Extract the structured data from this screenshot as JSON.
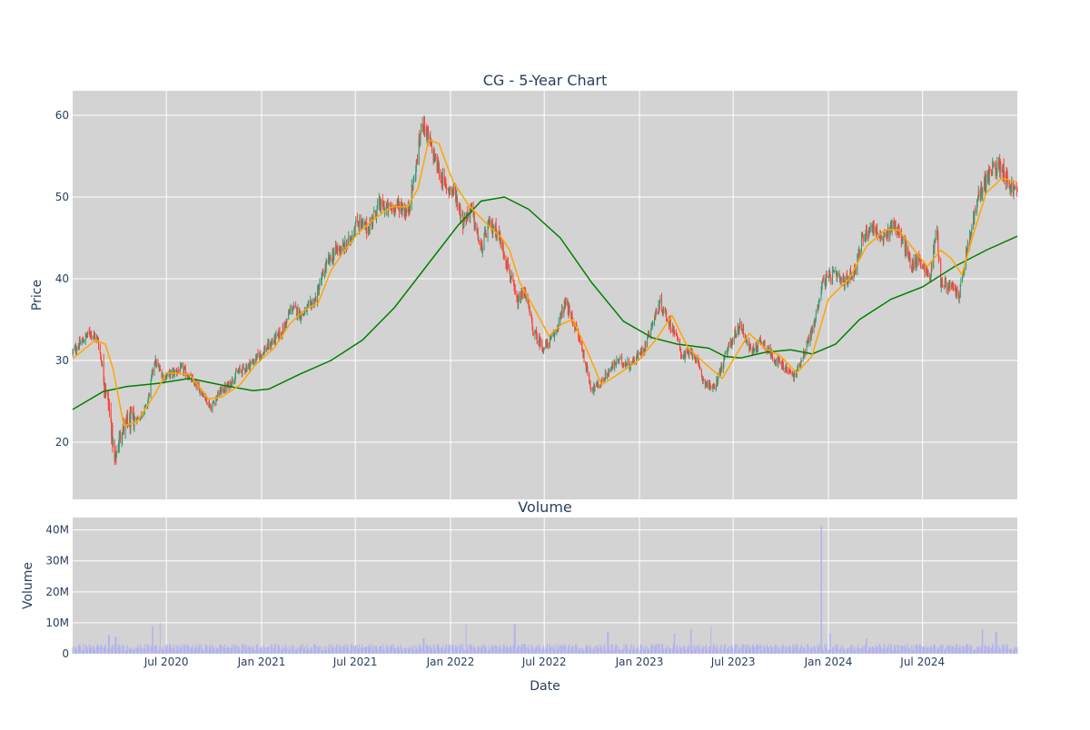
{
  "chart_data": [
    {
      "type": "candlestick",
      "title": "CG - 5-Year Chart",
      "xlabel": "",
      "ylabel": "Price",
      "ylim": [
        13,
        63
      ],
      "yticks": [
        20,
        30,
        40,
        50,
        60
      ],
      "xlim": [
        "2020-01-02",
        "2024-12-31"
      ],
      "xticks": [
        {
          "date": "2020-07-01",
          "label": "Jul 2020"
        },
        {
          "date": "2021-01-01",
          "label": "Jan 2021"
        },
        {
          "date": "2021-07-01",
          "label": "Jul 2021"
        },
        {
          "date": "2022-01-01",
          "label": "Jan 2022"
        },
        {
          "date": "2022-07-01",
          "label": "Jul 2022"
        },
        {
          "date": "2023-01-01",
          "label": "Jan 2023"
        },
        {
          "date": "2023-07-01",
          "label": "Jul 2023"
        },
        {
          "date": "2024-01-01",
          "label": "Jan 2024"
        },
        {
          "date": "2024-07-01",
          "label": "Jul 2024"
        }
      ],
      "grid": true,
      "background": "#d3d3d3",
      "colors": {
        "up": "#3d9970",
        "down": "#ff4136",
        "ma_short": "#ffa500",
        "ma_long": "#008000"
      },
      "price_path": [
        [
          "2020-01-02",
          31.0
        ],
        [
          "2020-01-20",
          32.3
        ],
        [
          "2020-02-05",
          33.5
        ],
        [
          "2020-02-20",
          32.5
        ],
        [
          "2020-03-05",
          27.0
        ],
        [
          "2020-03-15",
          23.0
        ],
        [
          "2020-03-23",
          17.5
        ],
        [
          "2020-04-05",
          21.5
        ],
        [
          "2020-04-20",
          22.5
        ],
        [
          "2020-05-10",
          23.0
        ],
        [
          "2020-05-25",
          24.5
        ],
        [
          "2020-06-08",
          30.0
        ],
        [
          "2020-06-25",
          28.0
        ],
        [
          "2020-07-15",
          28.5
        ],
        [
          "2020-08-01",
          29.0
        ],
        [
          "2020-08-20",
          27.5
        ],
        [
          "2020-09-10",
          26.0
        ],
        [
          "2020-09-25",
          24.2
        ],
        [
          "2020-10-10",
          26.0
        ],
        [
          "2020-10-30",
          27.0
        ],
        [
          "2020-11-15",
          28.5
        ],
        [
          "2020-12-10",
          29.5
        ],
        [
          "2021-01-10",
          31.5
        ],
        [
          "2021-02-10",
          33.5
        ],
        [
          "2021-02-28",
          36.5
        ],
        [
          "2021-03-20",
          35.5
        ],
        [
          "2021-04-15",
          37.5
        ],
        [
          "2021-05-05",
          41.5
        ],
        [
          "2021-05-25",
          43.5
        ],
        [
          "2021-06-15",
          44.0
        ],
        [
          "2021-07-05",
          47.0
        ],
        [
          "2021-07-25",
          46.0
        ],
        [
          "2021-08-15",
          49.0
        ],
        [
          "2021-09-05",
          48.5
        ],
        [
          "2021-09-25",
          49.0
        ],
        [
          "2021-10-10",
          48.0
        ],
        [
          "2021-10-25",
          53.0
        ],
        [
          "2021-11-08",
          59.5
        ],
        [
          "2021-11-20",
          57.0
        ],
        [
          "2021-12-05",
          54.0
        ],
        [
          "2021-12-20",
          51.5
        ],
        [
          "2022-01-10",
          50.5
        ],
        [
          "2022-01-25",
          47.0
        ],
        [
          "2022-02-10",
          48.5
        ],
        [
          "2022-03-01",
          43.5
        ],
        [
          "2022-03-15",
          46.5
        ],
        [
          "2022-04-01",
          46.0
        ],
        [
          "2022-04-20",
          42.0
        ],
        [
          "2022-05-10",
          37.0
        ],
        [
          "2022-05-25",
          38.5
        ],
        [
          "2022-06-10",
          33.5
        ],
        [
          "2022-06-30",
          31.5
        ],
        [
          "2022-07-20",
          33.0
        ],
        [
          "2022-08-10",
          37.0
        ],
        [
          "2022-08-25",
          35.0
        ],
        [
          "2022-09-10",
          32.0
        ],
        [
          "2022-09-30",
          26.5
        ],
        [
          "2022-10-15",
          27.0
        ],
        [
          "2022-11-01",
          28.5
        ],
        [
          "2022-11-20",
          30.0
        ],
        [
          "2022-12-15",
          29.5
        ],
        [
          "2023-01-10",
          31.5
        ],
        [
          "2023-01-25",
          34.5
        ],
        [
          "2023-02-10",
          37.0
        ],
        [
          "2023-02-25",
          35.0
        ],
        [
          "2023-03-10",
          33.5
        ],
        [
          "2023-03-25",
          30.5
        ],
        [
          "2023-04-15",
          31.0
        ],
        [
          "2023-05-05",
          27.5
        ],
        [
          "2023-05-25",
          26.5
        ],
        [
          "2023-06-10",
          29.5
        ],
        [
          "2023-06-25",
          32.0
        ],
        [
          "2023-07-15",
          34.5
        ],
        [
          "2023-08-05",
          31.0
        ],
        [
          "2023-08-25",
          32.5
        ],
        [
          "2023-09-15",
          30.5
        ],
        [
          "2023-10-10",
          29.0
        ],
        [
          "2023-10-28",
          28.0
        ],
        [
          "2023-11-15",
          31.0
        ],
        [
          "2023-12-05",
          34.5
        ],
        [
          "2023-12-20",
          39.5
        ],
        [
          "2024-01-10",
          40.5
        ],
        [
          "2024-02-01",
          39.5
        ],
        [
          "2024-02-20",
          41.0
        ],
        [
          "2024-03-10",
          45.5
        ],
        [
          "2024-03-28",
          46.5
        ],
        [
          "2024-04-15",
          44.5
        ],
        [
          "2024-05-05",
          47.0
        ],
        [
          "2024-05-25",
          44.5
        ],
        [
          "2024-06-10",
          41.5
        ],
        [
          "2024-06-25",
          42.5
        ],
        [
          "2024-07-15",
          40.0
        ],
        [
          "2024-07-28",
          46.5
        ],
        [
          "2024-08-05",
          39.5
        ],
        [
          "2024-08-25",
          39.0
        ],
        [
          "2024-09-10",
          38.0
        ],
        [
          "2024-09-25",
          43.5
        ],
        [
          "2024-10-15",
          49.5
        ],
        [
          "2024-10-30",
          52.0
        ],
        [
          "2024-11-15",
          53.5
        ],
        [
          "2024-11-30",
          54.0
        ],
        [
          "2024-12-15",
          51.5
        ],
        [
          "2024-12-31",
          50.5
        ]
      ],
      "ma_short": [
        [
          "2020-01-02",
          30.2
        ],
        [
          "2020-02-15",
          32.5
        ],
        [
          "2020-03-05",
          32.0
        ],
        [
          "2020-03-20",
          29.0
        ],
        [
          "2020-04-10",
          22.0
        ],
        [
          "2020-05-05",
          22.5
        ],
        [
          "2020-06-10",
          26.0
        ],
        [
          "2020-07-01",
          28.5
        ],
        [
          "2020-08-15",
          28.3
        ],
        [
          "2020-09-20",
          25.3
        ],
        [
          "2020-10-15",
          25.5
        ],
        [
          "2020-11-20",
          27.0
        ],
        [
          "2020-12-20",
          29.5
        ],
        [
          "2021-01-25",
          31.5
        ],
        [
          "2021-02-25",
          34.5
        ],
        [
          "2021-03-25",
          36.2
        ],
        [
          "2021-04-20",
          37.0
        ],
        [
          "2021-05-15",
          41.0
        ],
        [
          "2021-06-05",
          43.0
        ],
        [
          "2021-07-05",
          45.5
        ],
        [
          "2021-08-10",
          47.5
        ],
        [
          "2021-09-10",
          48.8
        ],
        [
          "2021-10-10",
          48.8
        ],
        [
          "2021-10-30",
          51.0
        ],
        [
          "2021-11-20",
          57.0
        ],
        [
          "2021-12-10",
          56.5
        ],
        [
          "2022-01-05",
          52.0
        ],
        [
          "2022-02-05",
          49.0
        ],
        [
          "2022-03-15",
          46.5
        ],
        [
          "2022-04-10",
          45.0
        ],
        [
          "2022-04-25",
          43.5
        ],
        [
          "2022-05-15",
          39.5
        ],
        [
          "2022-06-15",
          36.0
        ],
        [
          "2022-07-10",
          33.0
        ],
        [
          "2022-08-05",
          34.5
        ],
        [
          "2022-08-25",
          35.0
        ],
        [
          "2022-09-20",
          31.5
        ],
        [
          "2022-10-20",
          27.0
        ],
        [
          "2022-11-25",
          28.5
        ],
        [
          "2022-12-30",
          30.0
        ],
        [
          "2023-02-01",
          32.5
        ],
        [
          "2023-03-05",
          35.5
        ],
        [
          "2023-04-05",
          31.5
        ],
        [
          "2023-05-10",
          29.5
        ],
        [
          "2023-06-10",
          27.8
        ],
        [
          "2023-07-05",
          30.5
        ],
        [
          "2023-08-01",
          33.3
        ],
        [
          "2023-09-01",
          31.5
        ],
        [
          "2023-10-01",
          30.5
        ],
        [
          "2023-11-01",
          28.5
        ],
        [
          "2023-11-30",
          30.5
        ],
        [
          "2024-01-01",
          37.5
        ],
        [
          "2024-02-10",
          40.0
        ],
        [
          "2024-03-15",
          44.0
        ],
        [
          "2024-04-20",
          46.0
        ],
        [
          "2024-05-15",
          46.0
        ],
        [
          "2024-06-15",
          43.5
        ],
        [
          "2024-07-10",
          41.5
        ],
        [
          "2024-08-05",
          43.5
        ],
        [
          "2024-08-25",
          42.5
        ],
        [
          "2024-09-15",
          40.5
        ],
        [
          "2024-10-05",
          45.0
        ],
        [
          "2024-11-01",
          50.5
        ],
        [
          "2024-12-01",
          52.3
        ],
        [
          "2024-12-31",
          51.8
        ]
      ],
      "ma_long": [
        [
          "2020-01-02",
          24.0
        ],
        [
          "2020-03-01",
          26.2
        ],
        [
          "2020-04-15",
          26.8
        ],
        [
          "2020-06-15",
          27.2
        ],
        [
          "2020-08-15",
          27.8
        ],
        [
          "2020-10-15",
          27.0
        ],
        [
          "2020-12-15",
          26.3
        ],
        [
          "2021-01-15",
          26.5
        ],
        [
          "2021-03-15",
          28.3
        ],
        [
          "2021-05-15",
          30.0
        ],
        [
          "2021-07-15",
          32.5
        ],
        [
          "2021-09-15",
          36.5
        ],
        [
          "2021-11-15",
          41.5
        ],
        [
          "2022-01-15",
          46.5
        ],
        [
          "2022-03-01",
          49.5
        ],
        [
          "2022-04-15",
          50.0
        ],
        [
          "2022-06-01",
          48.5
        ],
        [
          "2022-08-01",
          45.0
        ],
        [
          "2022-10-01",
          39.5
        ],
        [
          "2022-12-01",
          34.8
        ],
        [
          "2023-01-25",
          32.8
        ],
        [
          "2023-03-15",
          32.0
        ],
        [
          "2023-05-15",
          31.5
        ],
        [
          "2023-06-15",
          30.5
        ],
        [
          "2023-07-15",
          30.3
        ],
        [
          "2023-09-01",
          31.0
        ],
        [
          "2023-10-20",
          31.3
        ],
        [
          "2023-12-01",
          30.8
        ],
        [
          "2024-01-15",
          32.0
        ],
        [
          "2024-03-01",
          35.0
        ],
        [
          "2024-05-01",
          37.5
        ],
        [
          "2024-07-01",
          39.0
        ],
        [
          "2024-09-01",
          41.5
        ],
        [
          "2024-11-01",
          43.5
        ],
        [
          "2024-12-31",
          45.2
        ]
      ]
    },
    {
      "type": "bar",
      "title": "Volume",
      "xlabel": "Date",
      "ylabel": "Volume",
      "ylim": [
        0,
        44000000
      ],
      "yticks": [
        {
          "value": 0,
          "label": "0"
        },
        {
          "value": 10000000,
          "label": "10M"
        },
        {
          "value": 20000000,
          "label": "20M"
        },
        {
          "value": 30000000,
          "label": "30M"
        },
        {
          "value": 40000000,
          "label": "40M"
        }
      ],
      "bar_color": "#b0b0f0",
      "grid": true,
      "background": "#d3d3d3",
      "typical_volume": 2500000,
      "notable_volumes": [
        [
          "2020-03-12",
          6000000
        ],
        [
          "2020-03-25",
          5500000
        ],
        [
          "2020-06-05",
          9000000
        ],
        [
          "2020-06-20",
          10000000
        ],
        [
          "2021-11-10",
          5000000
        ],
        [
          "2022-01-30",
          9500000
        ],
        [
          "2022-05-05",
          9500000
        ],
        [
          "2022-11-01",
          7000000
        ],
        [
          "2023-03-10",
          6500000
        ],
        [
          "2023-04-10",
          8000000
        ],
        [
          "2023-05-20",
          9000000
        ],
        [
          "2023-12-18",
          41500000
        ],
        [
          "2024-01-05",
          6500000
        ],
        [
          "2024-03-15",
          5000000
        ],
        [
          "2024-10-25",
          8000000
        ],
        [
          "2024-11-20",
          7000000
        ]
      ]
    }
  ]
}
